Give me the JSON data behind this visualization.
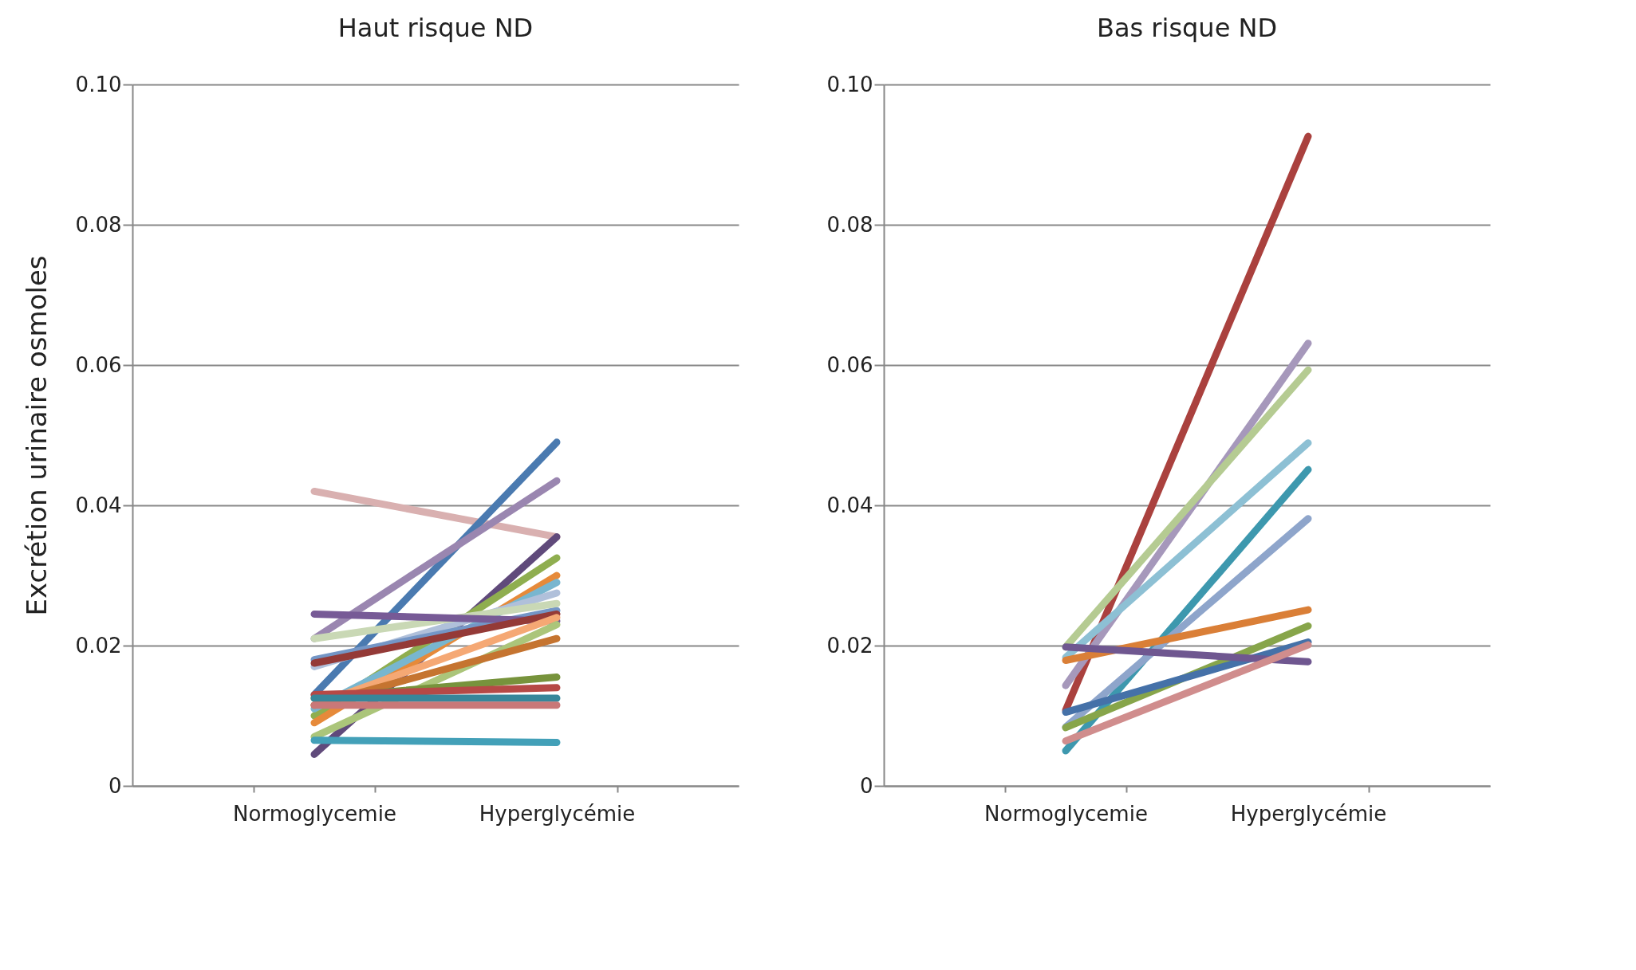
{
  "chart_data": [
    {
      "type": "line",
      "title": "Haut risque ND",
      "ylabel": "Excrétion urinaire osmoles",
      "categories": [
        "Normoglycemie",
        "Hyperglycémie"
      ],
      "ylim": [
        0,
        0.1
      ],
      "yticks": [
        0,
        0.02,
        0.04,
        0.06,
        0.08,
        {
          "value": 0.1,
          "label": "0.10"
        }
      ],
      "grid": "y",
      "line_style": "solid",
      "marker": "none",
      "series": [
        {
          "color": "#d9b0b0",
          "values": [
            0.042,
            0.0355
          ]
        },
        {
          "color": "#4a7ab0",
          "values": [
            0.013,
            0.049
          ]
        },
        {
          "color": "#9a86b0",
          "values": [
            0.021,
            0.0435
          ]
        },
        {
          "color": "#604a7b",
          "values": [
            0.0045,
            0.0355
          ]
        },
        {
          "color": "#8fae4f",
          "values": [
            0.01,
            0.0325
          ]
        },
        {
          "color": "#e68a3a",
          "values": [
            0.009,
            0.03
          ]
        },
        {
          "color": "#78b6cf",
          "values": [
            0.011,
            0.029
          ]
        },
        {
          "color": "#b0c0da",
          "values": [
            0.017,
            0.0275
          ]
        },
        {
          "color": "#7496c6",
          "values": [
            0.018,
            0.025
          ]
        },
        {
          "color": "#c9d8b5",
          "values": [
            0.021,
            0.026
          ]
        },
        {
          "color": "#775a96",
          "values": [
            0.0245,
            0.0235
          ]
        },
        {
          "color": "#943a37",
          "values": [
            0.0175,
            0.0245
          ]
        },
        {
          "color": "#f5a874",
          "values": [
            0.0115,
            0.024
          ]
        },
        {
          "color": "#abc57a",
          "values": [
            0.007,
            0.023
          ]
        },
        {
          "color": "#c57430",
          "values": [
            0.0115,
            0.021
          ]
        },
        {
          "color": "#77933c",
          "values": [
            0.0125,
            0.0155
          ]
        },
        {
          "color": "#b64946",
          "values": [
            0.013,
            0.014
          ]
        },
        {
          "color": "#37869a",
          "values": [
            0.0125,
            0.0125
          ]
        },
        {
          "color": "#c97878",
          "values": [
            0.0115,
            0.0115
          ]
        },
        {
          "color": "#43a0b8",
          "values": [
            0.0065,
            0.0062
          ]
        }
      ]
    },
    {
      "type": "line",
      "title": "Bas risque ND",
      "categories": [
        "Normoglycemie",
        "Hyperglycémie"
      ],
      "ylim": [
        0,
        0.1
      ],
      "yticks": [
        0,
        0.02,
        0.04,
        0.06,
        0.08,
        {
          "value": 0.1,
          "label": "0.10"
        }
      ],
      "grid": "y",
      "line_style": "solid",
      "marker": "none",
      "series": [
        {
          "color": "#aa413e",
          "values": [
            0.0108,
            0.0926
          ]
        },
        {
          "color": "#a698bb",
          "values": [
            0.0143,
            0.0631
          ]
        },
        {
          "color": "#b5cb92",
          "values": [
            0.0198,
            0.0593
          ]
        },
        {
          "color": "#8dc0d4",
          "values": [
            0.0183,
            0.0489
          ]
        },
        {
          "color": "#3d98ae",
          "values": [
            0.005,
            0.0451
          ]
        },
        {
          "color": "#8ea5cb",
          "values": [
            0.0084,
            0.0381
          ]
        },
        {
          "color": "#da7f37",
          "values": [
            0.0179,
            0.0251
          ]
        },
        {
          "color": "#87a54a",
          "values": [
            0.0083,
            0.0228
          ]
        },
        {
          "color": "#4571a8",
          "values": [
            0.0105,
            0.0205
          ]
        },
        {
          "color": "#6f5790",
          "values": [
            0.0198,
            0.0177
          ]
        },
        {
          "color": "#d08d8d",
          "values": [
            0.0064,
            0.0201
          ]
        }
      ]
    }
  ]
}
